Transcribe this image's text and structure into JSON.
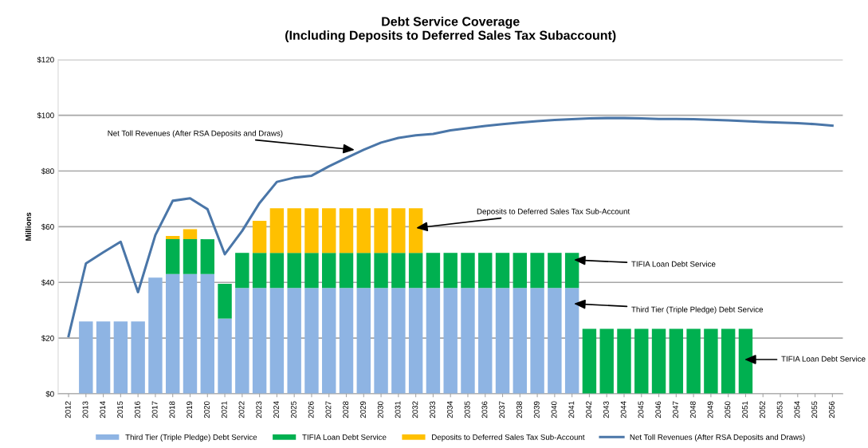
{
  "chart_data": {
    "type": "bar",
    "stacked": true,
    "title": "Debt Service Coverage\n(Including Deposits to Deferred Sales Tax Subaccount)",
    "ylabel": "Millions",
    "categories": [
      "2012",
      "2013",
      "2014",
      "2015",
      "2016",
      "2017",
      "2018",
      "2019",
      "2020",
      "2021",
      "2022",
      "2023",
      "2024",
      "2025",
      "2026",
      "2027",
      "2028",
      "2029",
      "2030",
      "2031",
      "2032",
      "2033",
      "2034",
      "2035",
      "2036",
      "2037",
      "2038",
      "2039",
      "2040",
      "2041",
      "2042",
      "2043",
      "2044",
      "2045",
      "2046",
      "2047",
      "2048",
      "2049",
      "2050",
      "2051",
      "2052",
      "2053",
      "2054",
      "2055",
      "2056"
    ],
    "series": [
      {
        "name": "Third Tier (Triple Pledge) Debt Service",
        "color": "#8eb4e3",
        "values": [
          null,
          26,
          26,
          26,
          26,
          41.7,
          43,
          43,
          43,
          27,
          38,
          38,
          38,
          38,
          38,
          38,
          38,
          38,
          38,
          38,
          38,
          38,
          38,
          38,
          38,
          38,
          38,
          38,
          38,
          38,
          null,
          null,
          null,
          null,
          null,
          null,
          null,
          null,
          null,
          null,
          null,
          null,
          null,
          null,
          null
        ]
      },
      {
        "name": "TIFIA Loan Debt Service",
        "color": "#00b050",
        "values": [
          null,
          null,
          null,
          null,
          null,
          null,
          12.5,
          12.5,
          12.5,
          12.5,
          12.6,
          12.6,
          12.6,
          12.6,
          12.6,
          12.6,
          12.6,
          12.6,
          12.6,
          12.6,
          12.6,
          12.6,
          12.6,
          12.6,
          12.6,
          12.6,
          12.6,
          12.6,
          12.6,
          12.6,
          23.3,
          23.3,
          23.3,
          23.3,
          23.3,
          23.3,
          23.3,
          23.3,
          23.3,
          23.3,
          null,
          null,
          null,
          null,
          null
        ]
      },
      {
        "name": "Deposits to Deferred Sales Tax Sub-Account",
        "color": "#ffc000",
        "values": [
          null,
          null,
          null,
          null,
          null,
          null,
          1.2,
          3.6,
          null,
          null,
          null,
          11.5,
          16,
          16,
          16,
          16,
          16,
          16,
          16,
          16,
          16,
          null,
          null,
          null,
          null,
          null,
          null,
          null,
          null,
          null,
          null,
          null,
          null,
          null,
          null,
          null,
          null,
          null,
          null,
          null,
          null,
          null,
          null,
          null,
          null
        ]
      },
      {
        "name": "Net Toll Revenues (After RSA Deposits and Draws)",
        "type": "line",
        "color": "#4a76a8",
        "values": [
          20.7,
          46.8,
          50.8,
          54.6,
          36.5,
          57,
          69.3,
          70.2,
          66.3,
          50.1,
          58.5,
          68.5,
          76.1,
          77.6,
          78.3,
          81.7,
          84.7,
          87.6,
          90.2,
          91.9,
          92.8,
          93.3,
          94.6,
          95.4,
          96.2,
          96.8,
          97.4,
          97.9,
          98.3,
          98.6,
          98.9,
          99,
          99,
          98.9,
          98.7,
          98.7,
          98.6,
          98.4,
          98.2,
          97.9,
          97.6,
          97.4,
          97.2,
          96.8,
          96.3
        ]
      }
    ],
    "ylim": [
      0,
      120
    ],
    "yticks": [
      {
        "value": 0,
        "label": "$0"
      },
      {
        "value": 20,
        "label": "$20"
      },
      {
        "value": 40,
        "label": "$40"
      },
      {
        "value": 60,
        "label": "$60"
      },
      {
        "value": 80,
        "label": "$80"
      },
      {
        "value": 100,
        "label": "$100"
      },
      {
        "value": 120,
        "label": "$120"
      }
    ],
    "grid": "y",
    "legend": "bottom",
    "annotations": [
      "Net Toll Revenues (After RSA Deposits and Draws)",
      "Deposits to Deferred Sales Tax Sub-Account",
      "TIFIA Loan Debt Service",
      "Third Tier (Triple Pledge) Debt Service",
      "TIFIA Loan Debt Service"
    ]
  }
}
